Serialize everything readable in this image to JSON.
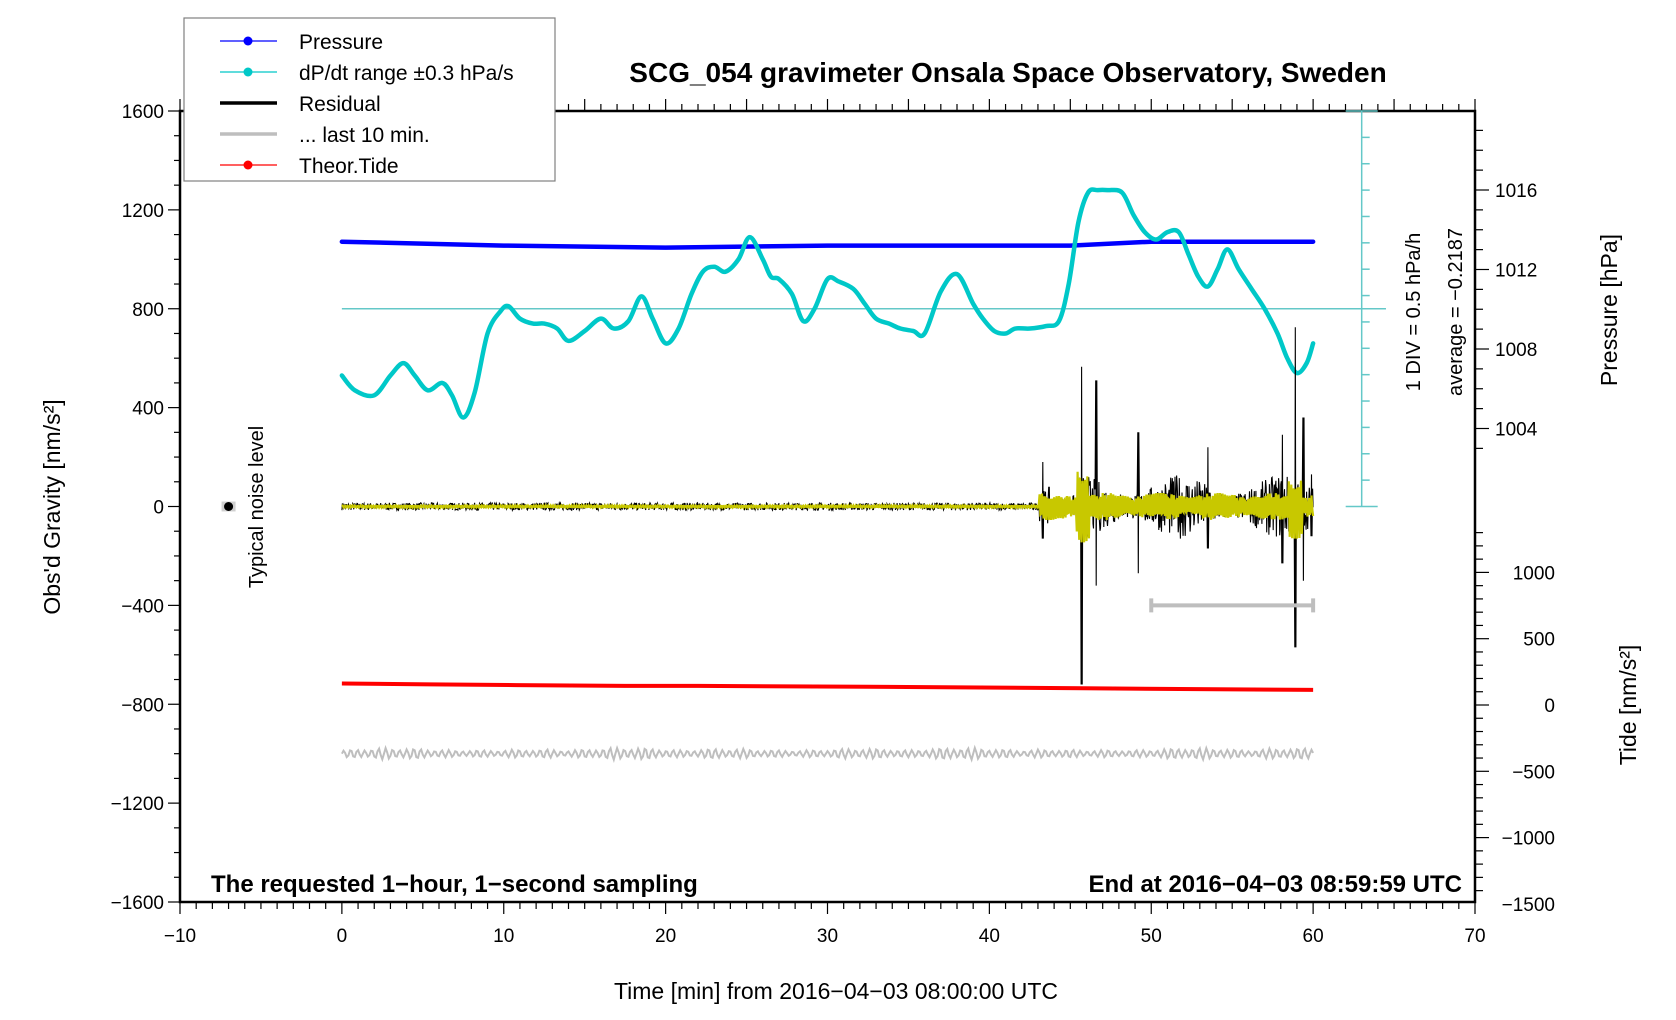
{
  "chart_data": {
    "type": "line",
    "title": "SCG_054 gravimeter Onsala Space Observatory, Sweden",
    "xlabel": "Time [min] from 2016−04−03 08:00:00 UTC",
    "ylabel": "Obs'd Gravity [nm/s²]",
    "ylabel_right_pressure": "Pressure [hPa]",
    "ylabel_right_tide": "Tide [nm/s²]",
    "xlim": [
      -10,
      70
    ],
    "ylim": [
      -1600,
      1600
    ],
    "pressure_ylim_visible": [
      1004,
      1016
    ],
    "tide_ylim": [
      -1500,
      1000
    ],
    "grid": false,
    "legend_position": "top-left",
    "x_ticks": [
      -10,
      0,
      10,
      20,
      30,
      40,
      50,
      60,
      70
    ],
    "x_tick_labels": [
      "−10",
      "0",
      "10",
      "20",
      "30",
      "40",
      "50",
      "60",
      "70"
    ],
    "y_ticks": [
      1600,
      1200,
      800,
      400,
      0,
      -400,
      -800,
      -1200,
      -1600
    ],
    "y_tick_labels": [
      "1600",
      "1200",
      "800",
      "400",
      "0",
      "−400",
      "−800",
      "−1200",
      "−1600"
    ],
    "pressure_ticks": [
      1016,
      1012,
      1008,
      1004
    ],
    "pressure_tick_labels": [
      "1016",
      "1012",
      "1008",
      "1004"
    ],
    "tide_ticks": [
      1000,
      500,
      0,
      -500,
      -1000,
      -1500
    ],
    "tide_tick_labels": [
      "1000",
      "500",
      "0",
      "−500",
      "−1000",
      "−1500"
    ],
    "legend": [
      {
        "label": "Pressure",
        "color": "#0000ff",
        "marker": true
      },
      {
        "label": "dP/dt range ±0.3 hPa/s",
        "color": "#00c8c8",
        "marker": true
      },
      {
        "label": "Residual",
        "color": "#000000",
        "marker": false
      },
      {
        "label": "... last 10 min.",
        "color": "#bebebe",
        "marker": false
      },
      {
        "label": "Theor.Tide",
        "color": "#ff0000",
        "marker": true
      }
    ],
    "series": [
      {
        "name": "Pressure",
        "axis": "pressure",
        "color": "#0000ff",
        "x": [
          0,
          10,
          20,
          30,
          40,
          45,
          50,
          60
        ],
        "values": [
          1013.4,
          1013.2,
          1013.1,
          1013.2,
          1013.2,
          1013.2,
          1013.4,
          1013.4
        ]
      },
      {
        "name": "dP/dt",
        "axis": "gravity",
        "color": "#00c8c8",
        "x": [
          0,
          0.8,
          2,
          3,
          3.8,
          4.5,
          5.3,
          6.2,
          6.8,
          7.5,
          8.2,
          9,
          9.8,
          10.3,
          11,
          11.8,
          12.5,
          13.3,
          14,
          15,
          16,
          16.8,
          17.7,
          18.5,
          19.2,
          20,
          20.8,
          21.6,
          22.3,
          23,
          23.7,
          24.5,
          25.2,
          26,
          26.5,
          27,
          27.8,
          28.5,
          29.2,
          30,
          30.7,
          31.6,
          32.3,
          33,
          33.8,
          34.5,
          35.3,
          36,
          37,
          38,
          39,
          39.6,
          40.3,
          41,
          41.6,
          42.5,
          43.5,
          44.3,
          44.9,
          45.5,
          46.1,
          46.7,
          47.3,
          48.2,
          48.9,
          49.6,
          50.3,
          51,
          51.7,
          52.3,
          52.9,
          53.5,
          54.1,
          54.7,
          55.4,
          56.2,
          57,
          57.8,
          58.4,
          59,
          59.6,
          60
        ],
        "values": [
          530,
          470,
          450,
          530,
          580,
          530,
          470,
          500,
          450,
          360,
          460,
          700,
          790,
          810,
          760,
          740,
          740,
          720,
          670,
          710,
          760,
          720,
          750,
          850,
          760,
          660,
          720,
          860,
          950,
          970,
          950,
          1000,
          1090,
          1000,
          930,
          920,
          860,
          750,
          800,
          920,
          910,
          880,
          820,
          760,
          740,
          720,
          710,
          700,
          870,
          940,
          820,
          760,
          710,
          700,
          720,
          720,
          730,
          750,
          900,
          1150,
          1270,
          1280,
          1280,
          1270,
          1180,
          1110,
          1080,
          1110,
          1110,
          1020,
          930,
          890,
          960,
          1040,
          960,
          880,
          800,
          700,
          600,
          540,
          580,
          660
        ]
      },
      {
        "name": "Residual",
        "axis": "gravity",
        "color": "#000000",
        "quiet_amplitude": 15,
        "active_from_min": 43,
        "spikes": [
          {
            "x": 43.3,
            "min": -130,
            "max": 180
          },
          {
            "x": 45.7,
            "min": -720,
            "max": 565
          },
          {
            "x": 46.6,
            "min": -320,
            "max": 510
          },
          {
            "x": 49.2,
            "min": -270,
            "max": 300
          },
          {
            "x": 53.5,
            "min": -170,
            "max": 240
          },
          {
            "x": 58.1,
            "min": -230,
            "max": 290
          },
          {
            "x": 58.9,
            "min": -570,
            "max": 725
          },
          {
            "x": 59.4,
            "min": -300,
            "max": 360
          },
          {
            "x": 59.9,
            "min": -120,
            "max": 130
          }
        ]
      },
      {
        "name": "Residual filtered",
        "axis": "gravity",
        "color": "#c8c800",
        "active_from_min": 43,
        "peak": {
          "x": 45.8,
          "min": -160,
          "max": 140
        }
      },
      {
        "name": "last 10 min. bar",
        "axis": "gravity",
        "color": "#bebebe",
        "x": [
          50,
          60
        ],
        "values": [
          -400,
          -400
        ]
      },
      {
        "name": "Theor.Tide",
        "axis": "tide",
        "color": "#ff0000",
        "x": [
          0,
          60
        ],
        "values": [
          160,
          115
        ]
      },
      {
        "name": "Noise reference (gray wave)",
        "axis": "gravity",
        "color": "#bebebe",
        "x_range": [
          0,
          60
        ],
        "center": -1000,
        "amplitude": 25
      },
      {
        "name": "Typical noise level",
        "axis": "gravity",
        "x": -7,
        "value": 0,
        "err": 20
      }
    ],
    "reference_line": {
      "axis": "gravity",
      "value": 800,
      "color": "#64c8c8"
    },
    "dpdt_scale": {
      "x": 63,
      "from": 0,
      "to": 1600,
      "divisions": 15,
      "label": "1 DIV = 0.5 hPa/h",
      "average_label": "average = −0.2187"
    },
    "annotations": {
      "noise_label": "Typical noise level",
      "footer_left": "The requested 1−hour, 1−second sampling",
      "footer_right": "End at 2016−04−03 08:59:59 UTC"
    }
  }
}
